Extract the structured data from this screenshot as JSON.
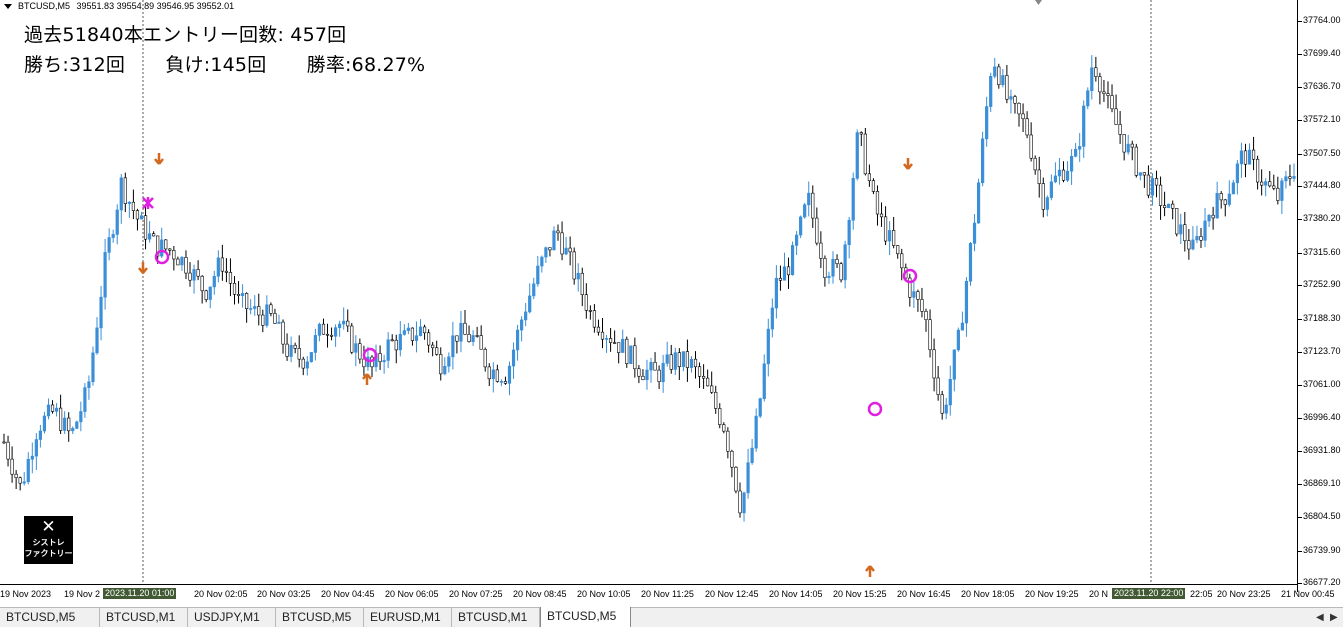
{
  "header": {
    "symbol": "BTCUSD,M5",
    "ohlc": "39551.83 39554.89 39546.95 39552.01"
  },
  "stats": {
    "line1": "過去51840本エントリー回数: 457回",
    "wins": "勝ち:312回",
    "losses": "負け:145回",
    "win_rate": "勝率:68.27%"
  },
  "logo": {
    "icon": "tools-icon",
    "line1": "シストレ",
    "line2": "ファクトリー"
  },
  "colors": {
    "bull": "#3a8fd8",
    "bear": "#000000",
    "arrow": "#d2691e",
    "circle": "#e020e0",
    "cross": "#e020e0",
    "highlight_bg": "#415a33"
  },
  "y_axis": {
    "labels": [
      "37764.00",
      "37699.40",
      "37636.70",
      "37572.10",
      "37507.50",
      "37444.80",
      "37380.20",
      "37315.60",
      "37252.90",
      "37188.30",
      "37123.70",
      "37061.00",
      "36996.40",
      "36931.80",
      "36869.10",
      "36804.50",
      "36739.90",
      "36677.20"
    ]
  },
  "x_axis": {
    "labels": [
      "19 Nov 2023",
      "19 Nov 2",
      "20 Nov 02:05",
      "20 Nov 03:25",
      "20 Nov 04:45",
      "20 Nov 06:05",
      "20 Nov 07:25",
      "20 Nov 08:45",
      "20 Nov 10:05",
      "20 Nov 11:25",
      "20 Nov 12:45",
      "20 Nov 14:05",
      "20 Nov 15:25",
      "20 Nov 16:45",
      "20 Nov 18:05",
      "20 Nov 19:25",
      "20 N",
      "22:05",
      "20 Nov 23:25",
      "21 Nov 00:45"
    ],
    "highlight1": "2023.11.20 01:00",
    "highlight2": "2023.11.20 22:00"
  },
  "tabs": [
    {
      "label": "BTCUSD,M5",
      "active": false
    },
    {
      "label": "BTCUSD,M1",
      "active": false
    },
    {
      "label": "USDJPY,M1",
      "active": false
    },
    {
      "label": "BTCUSD,M5",
      "active": false
    },
    {
      "label": "EURUSD,M1",
      "active": false
    },
    {
      "label": "BTCUSD,M1",
      "active": false
    },
    {
      "label": "BTCUSD,M5",
      "active": true
    }
  ],
  "chart_data": {
    "type": "candlestick",
    "timeframe": "M5",
    "ylim": [
      36677.2,
      37764.0
    ],
    "anchor_prices": [
      36950,
      36860,
      36980,
      37010,
      36960,
      37050,
      37290,
      37450,
      37380,
      37330,
      37320,
      37290,
      37240,
      37300,
      37220,
      37200,
      37190,
      37120,
      37110,
      37170,
      37180,
      37130,
      37090,
      37140,
      37150,
      37170,
      37100,
      37160,
      37150,
      37090,
      37080,
      37200,
      37290,
      37360,
      37280,
      37200,
      37160,
      37130,
      37090,
      37080,
      37110,
      37100,
      37050,
      36980,
      36820,
      37000,
      37250,
      37300,
      37420,
      37290,
      37280,
      37550,
      37400,
      37330,
      37250,
      37190,
      37000,
      37150,
      37400,
      37700,
      37600,
      37560,
      37420,
      37470,
      37500,
      37690,
      37590,
      37520,
      37460,
      37420,
      37370,
      37320,
      37400,
      37430,
      37510,
      37460,
      37420,
      37480
    ]
  }
}
